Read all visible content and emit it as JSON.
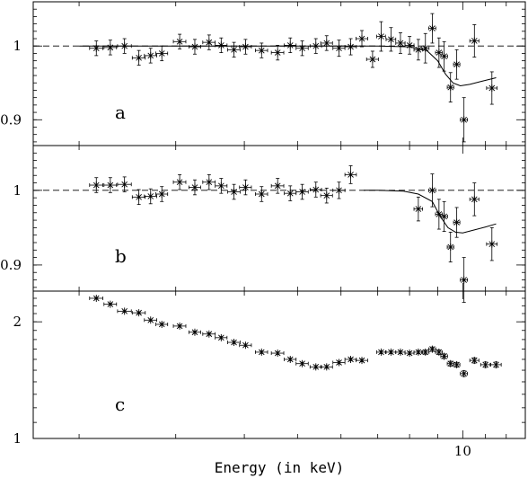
{
  "xlabel": "Energy (in keV)",
  "x_tick_labels": [
    {
      "x": 10,
      "label": "10"
    }
  ],
  "x_scale": "log",
  "xlim": [
    1.65,
    13.0
  ],
  "chart_data": [
    {
      "type": "scatter",
      "panel_label": "a",
      "ylim": [
        0.865,
        1.06
      ],
      "reference_line": 1.0,
      "y_ticks": [
        {
          "y": 0.9,
          "label": "0.9"
        },
        {
          "y": 1.0,
          "label": "1"
        }
      ],
      "points": [
        {
          "x": 2.15,
          "y": 0.997,
          "xerr": 0.06,
          "yerr": 0.01
        },
        {
          "x": 2.28,
          "y": 0.998,
          "xerr": 0.06,
          "yerr": 0.01
        },
        {
          "x": 2.42,
          "y": 1.0,
          "xerr": 0.07,
          "yerr": 0.01
        },
        {
          "x": 2.57,
          "y": 0.984,
          "xerr": 0.07,
          "yerr": 0.01
        },
        {
          "x": 2.7,
          "y": 0.987,
          "xerr": 0.07,
          "yerr": 0.01
        },
        {
          "x": 2.83,
          "y": 0.99,
          "xerr": 0.07,
          "yerr": 0.01
        },
        {
          "x": 3.05,
          "y": 1.006,
          "xerr": 0.08,
          "yerr": 0.01
        },
        {
          "x": 3.25,
          "y": 0.999,
          "xerr": 0.08,
          "yerr": 0.01
        },
        {
          "x": 3.45,
          "y": 1.005,
          "xerr": 0.09,
          "yerr": 0.01
        },
        {
          "x": 3.63,
          "y": 1.001,
          "xerr": 0.09,
          "yerr": 0.01
        },
        {
          "x": 3.83,
          "y": 0.995,
          "xerr": 0.1,
          "yerr": 0.01
        },
        {
          "x": 4.02,
          "y": 0.999,
          "xerr": 0.1,
          "yerr": 0.01
        },
        {
          "x": 4.3,
          "y": 0.994,
          "xerr": 0.11,
          "yerr": 0.01
        },
        {
          "x": 4.6,
          "y": 0.991,
          "xerr": 0.12,
          "yerr": 0.01
        },
        {
          "x": 4.85,
          "y": 1.001,
          "xerr": 0.12,
          "yerr": 0.01
        },
        {
          "x": 5.1,
          "y": 0.997,
          "xerr": 0.13,
          "yerr": 0.01
        },
        {
          "x": 5.4,
          "y": 1.0,
          "xerr": 0.13,
          "yerr": 0.01
        },
        {
          "x": 5.65,
          "y": 1.004,
          "xerr": 0.14,
          "yerr": 0.01
        },
        {
          "x": 5.95,
          "y": 0.997,
          "xerr": 0.15,
          "yerr": 0.011
        },
        {
          "x": 6.25,
          "y": 0.999,
          "xerr": 0.15,
          "yerr": 0.011
        },
        {
          "x": 6.55,
          "y": 1.01,
          "xerr": 0.16,
          "yerr": 0.011
        },
        {
          "x": 6.85,
          "y": 0.982,
          "xerr": 0.17,
          "yerr": 0.011
        },
        {
          "x": 7.1,
          "y": 1.013,
          "xerr": 0.13,
          "yerr": 0.02
        },
        {
          "x": 7.4,
          "y": 1.009,
          "xerr": 0.15,
          "yerr": 0.016
        },
        {
          "x": 7.7,
          "y": 1.004,
          "xerr": 0.15,
          "yerr": 0.014
        },
        {
          "x": 8.0,
          "y": 1.001,
          "xerr": 0.15,
          "yerr": 0.012
        },
        {
          "x": 8.3,
          "y": 0.995,
          "xerr": 0.15,
          "yerr": 0.014
        },
        {
          "x": 8.55,
          "y": 0.997,
          "xerr": 0.13,
          "yerr": 0.02
        },
        {
          "x": 8.8,
          "y": 1.024,
          "xerr": 0.13,
          "yerr": 0.02
        },
        {
          "x": 9.05,
          "y": 0.991,
          "xerr": 0.13,
          "yerr": 0.02
        },
        {
          "x": 9.25,
          "y": 0.986,
          "xerr": 0.13,
          "yerr": 0.02
        },
        {
          "x": 9.5,
          "y": 0.944,
          "xerr": 0.13,
          "yerr": 0.02
        },
        {
          "x": 9.75,
          "y": 0.975,
          "xerr": 0.13,
          "yerr": 0.02
        },
        {
          "x": 10.05,
          "y": 0.9,
          "xerr": 0.15,
          "yerr": 0.03
        },
        {
          "x": 10.5,
          "y": 1.007,
          "xerr": 0.2,
          "yerr": 0.022
        },
        {
          "x": 11.3,
          "y": 0.943,
          "xerr": 0.25,
          "yerr": 0.022
        }
      ],
      "model": [
        [
          2.0,
          1.0
        ],
        [
          5.0,
          1.0
        ],
        [
          7.0,
          1.0
        ],
        [
          8.0,
          0.999
        ],
        [
          8.6,
          0.994
        ],
        [
          9.0,
          0.98
        ],
        [
          9.3,
          0.962
        ],
        [
          9.6,
          0.95
        ],
        [
          9.9,
          0.946
        ],
        [
          10.3,
          0.948
        ],
        [
          10.8,
          0.952
        ],
        [
          11.5,
          0.957
        ]
      ]
    },
    {
      "type": "scatter",
      "panel_label": "b",
      "ylim": [
        0.865,
        1.06
      ],
      "reference_line": 1.0,
      "y_ticks": [
        {
          "y": 0.9,
          "label": "0.9"
        },
        {
          "y": 1.0,
          "label": "1"
        }
      ],
      "points": [
        {
          "x": 2.15,
          "y": 1.007,
          "xerr": 0.06,
          "yerr": 0.01
        },
        {
          "x": 2.28,
          "y": 1.007,
          "xerr": 0.06,
          "yerr": 0.01
        },
        {
          "x": 2.42,
          "y": 1.008,
          "xerr": 0.07,
          "yerr": 0.01
        },
        {
          "x": 2.57,
          "y": 0.991,
          "xerr": 0.07,
          "yerr": 0.01
        },
        {
          "x": 2.7,
          "y": 0.992,
          "xerr": 0.07,
          "yerr": 0.01
        },
        {
          "x": 2.83,
          "y": 0.995,
          "xerr": 0.07,
          "yerr": 0.01
        },
        {
          "x": 3.05,
          "y": 1.011,
          "xerr": 0.08,
          "yerr": 0.01
        },
        {
          "x": 3.25,
          "y": 1.004,
          "xerr": 0.08,
          "yerr": 0.01
        },
        {
          "x": 3.45,
          "y": 1.011,
          "xerr": 0.09,
          "yerr": 0.01
        },
        {
          "x": 3.63,
          "y": 1.006,
          "xerr": 0.09,
          "yerr": 0.01
        },
        {
          "x": 3.83,
          "y": 0.998,
          "xerr": 0.1,
          "yerr": 0.01
        },
        {
          "x": 4.02,
          "y": 1.004,
          "xerr": 0.1,
          "yerr": 0.01
        },
        {
          "x": 4.3,
          "y": 0.995,
          "xerr": 0.11,
          "yerr": 0.01
        },
        {
          "x": 4.6,
          "y": 1.006,
          "xerr": 0.12,
          "yerr": 0.01
        },
        {
          "x": 4.85,
          "y": 0.996,
          "xerr": 0.12,
          "yerr": 0.01
        },
        {
          "x": 5.1,
          "y": 0.998,
          "xerr": 0.13,
          "yerr": 0.01
        },
        {
          "x": 5.4,
          "y": 1.001,
          "xerr": 0.13,
          "yerr": 0.01
        },
        {
          "x": 5.65,
          "y": 0.993,
          "xerr": 0.14,
          "yerr": 0.01
        },
        {
          "x": 5.95,
          "y": 1.0,
          "xerr": 0.15,
          "yerr": 0.011
        },
        {
          "x": 6.25,
          "y": 1.021,
          "xerr": 0.15,
          "yerr": 0.012
        },
        {
          "x": 8.3,
          "y": 0.975,
          "xerr": 0.15,
          "yerr": 0.016
        },
        {
          "x": 8.8,
          "y": 1.0,
          "xerr": 0.13,
          "yerr": 0.022
        },
        {
          "x": 9.05,
          "y": 0.968,
          "xerr": 0.13,
          "yerr": 0.02
        },
        {
          "x": 9.25,
          "y": 0.965,
          "xerr": 0.13,
          "yerr": 0.02
        },
        {
          "x": 9.5,
          "y": 0.924,
          "xerr": 0.13,
          "yerr": 0.02
        },
        {
          "x": 9.75,
          "y": 0.957,
          "xerr": 0.13,
          "yerr": 0.02
        },
        {
          "x": 10.05,
          "y": 0.88,
          "xerr": 0.15,
          "yerr": 0.03
        },
        {
          "x": 10.5,
          "y": 0.988,
          "xerr": 0.2,
          "yerr": 0.022
        },
        {
          "x": 11.3,
          "y": 0.928,
          "xerr": 0.25,
          "yerr": 0.022
        }
      ],
      "model": [
        [
          6.6,
          1.0
        ],
        [
          7.0,
          1.0
        ],
        [
          7.8,
          0.999
        ],
        [
          8.3,
          0.995
        ],
        [
          8.8,
          0.985
        ],
        [
          9.1,
          0.965
        ],
        [
          9.4,
          0.95
        ],
        [
          9.7,
          0.944
        ],
        [
          10.0,
          0.943
        ],
        [
          10.5,
          0.947
        ],
        [
          11.0,
          0.951
        ],
        [
          11.5,
          0.955
        ]
      ]
    },
    {
      "type": "scatter",
      "panel_label": "c",
      "ylim": [
        1.0,
        2.4
      ],
      "y_scale": "log",
      "y_ticks": [
        {
          "y": 1,
          "label": "1"
        },
        {
          "y": 2,
          "label": "2"
        }
      ],
      "points": [
        {
          "x": 2.15,
          "y": 2.3,
          "xerr": 0.06,
          "yerr": 0.012
        },
        {
          "x": 2.28,
          "y": 2.22,
          "xerr": 0.06,
          "yerr": 0.012
        },
        {
          "x": 2.42,
          "y": 2.13,
          "xerr": 0.07,
          "yerr": 0.012
        },
        {
          "x": 2.57,
          "y": 2.11,
          "xerr": 0.07,
          "yerr": 0.012
        },
        {
          "x": 2.7,
          "y": 2.02,
          "xerr": 0.07,
          "yerr": 0.012
        },
        {
          "x": 2.83,
          "y": 1.97,
          "xerr": 0.07,
          "yerr": 0.012
        },
        {
          "x": 3.05,
          "y": 1.95,
          "xerr": 0.08,
          "yerr": 0.012
        },
        {
          "x": 3.25,
          "y": 1.88,
          "xerr": 0.08,
          "yerr": 0.012
        },
        {
          "x": 3.45,
          "y": 1.86,
          "xerr": 0.09,
          "yerr": 0.012
        },
        {
          "x": 3.63,
          "y": 1.82,
          "xerr": 0.09,
          "yerr": 0.012
        },
        {
          "x": 3.83,
          "y": 1.77,
          "xerr": 0.1,
          "yerr": 0.012
        },
        {
          "x": 4.02,
          "y": 1.74,
          "xerr": 0.1,
          "yerr": 0.012
        },
        {
          "x": 4.3,
          "y": 1.67,
          "xerr": 0.11,
          "yerr": 0.012
        },
        {
          "x": 4.6,
          "y": 1.66,
          "xerr": 0.12,
          "yerr": 0.012
        },
        {
          "x": 4.85,
          "y": 1.6,
          "xerr": 0.12,
          "yerr": 0.012
        },
        {
          "x": 5.1,
          "y": 1.56,
          "xerr": 0.13,
          "yerr": 0.012
        },
        {
          "x": 5.4,
          "y": 1.53,
          "xerr": 0.13,
          "yerr": 0.012
        },
        {
          "x": 5.65,
          "y": 1.53,
          "xerr": 0.14,
          "yerr": 0.012
        },
        {
          "x": 5.95,
          "y": 1.57,
          "xerr": 0.15,
          "yerr": 0.012
        },
        {
          "x": 6.25,
          "y": 1.6,
          "xerr": 0.15,
          "yerr": 0.012
        },
        {
          "x": 6.55,
          "y": 1.59,
          "xerr": 0.16,
          "yerr": 0.012
        },
        {
          "x": 7.1,
          "y": 1.67,
          "xerr": 0.13,
          "yerr": 0.014
        },
        {
          "x": 7.4,
          "y": 1.67,
          "xerr": 0.15,
          "yerr": 0.014
        },
        {
          "x": 7.7,
          "y": 1.67,
          "xerr": 0.15,
          "yerr": 0.014
        },
        {
          "x": 8.0,
          "y": 1.66,
          "xerr": 0.15,
          "yerr": 0.014
        },
        {
          "x": 8.3,
          "y": 1.67,
          "xerr": 0.15,
          "yerr": 0.016
        },
        {
          "x": 8.55,
          "y": 1.67,
          "xerr": 0.13,
          "yerr": 0.02
        },
        {
          "x": 8.8,
          "y": 1.7,
          "xerr": 0.13,
          "yerr": 0.022
        },
        {
          "x": 9.05,
          "y": 1.67,
          "xerr": 0.13,
          "yerr": 0.022
        },
        {
          "x": 9.25,
          "y": 1.63,
          "xerr": 0.13,
          "yerr": 0.022
        },
        {
          "x": 9.5,
          "y": 1.56,
          "xerr": 0.13,
          "yerr": 0.022
        },
        {
          "x": 9.75,
          "y": 1.55,
          "xerr": 0.13,
          "yerr": 0.022
        },
        {
          "x": 10.05,
          "y": 1.47,
          "xerr": 0.15,
          "yerr": 0.025
        },
        {
          "x": 10.5,
          "y": 1.59,
          "xerr": 0.2,
          "yerr": 0.025
        },
        {
          "x": 11.0,
          "y": 1.55,
          "xerr": 0.22,
          "yerr": 0.025
        },
        {
          "x": 11.5,
          "y": 1.55,
          "xerr": 0.25,
          "yerr": 0.025
        }
      ]
    }
  ]
}
